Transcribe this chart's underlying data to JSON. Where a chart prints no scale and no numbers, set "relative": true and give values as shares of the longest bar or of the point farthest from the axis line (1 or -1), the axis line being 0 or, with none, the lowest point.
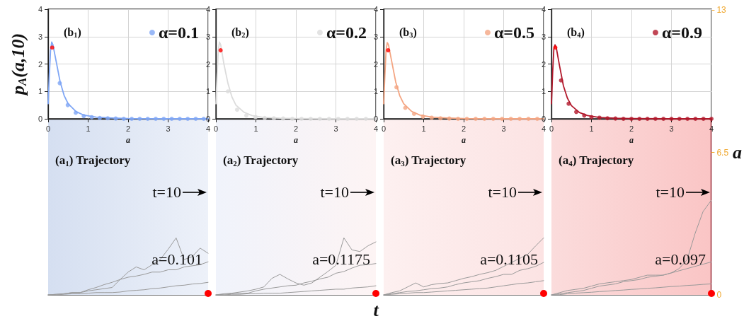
{
  "chart_data": [
    {
      "type": "line",
      "annotations": [
        "(b$_{1}$)"
      ],
      "xlabel": "a",
      "ylabel": "p$_{A}$(a,10)",
      "xlim": [
        0,
        4
      ],
      "xticks": [
        0,
        1,
        2,
        3,
        4
      ],
      "ylim": [
        0,
        4
      ],
      "yticks": [
        0,
        1,
        2,
        3,
        4
      ],
      "grid": true,
      "legend": "top right",
      "marker": "none",
      "series": [
        {
          "color": "#7fa6f5",
          "x": [
            0,
            0.03,
            0.06,
            0.09,
            0.12,
            0.2,
            0.3,
            0.4,
            0.5,
            0.7,
            0.9,
            1.2,
            1.6,
            2,
            3,
            4
          ],
          "values": [
            0.55,
            1.6,
            2.5,
            2.8,
            2.7,
            2.1,
            1.35,
            0.85,
            0.55,
            0.26,
            0.13,
            0.06,
            0.03,
            0.01,
            0,
            0
          ]
        },
        {
          "type": "scatter",
          "name": "α=0.1",
          "color": "#7fa6f5",
          "x": [
            0.29,
            0.49,
            0.69,
            0.89,
            1.09,
            1.29,
            1.49,
            1.69,
            1.89,
            2.09,
            2.29,
            2.49,
            2.69,
            2.89,
            3.09,
            3.29,
            3.49,
            3.69,
            3.89
          ],
          "values": [
            1.3,
            0.5,
            0.22,
            0.1,
            0.06,
            0.03,
            0.02,
            0.01,
            0,
            0,
            0,
            0,
            0,
            0,
            0,
            0,
            0,
            0,
            0
          ]
        },
        {
          "type": "scatter",
          "color": "#ff0000",
          "x": [
            0.101
          ],
          "values": [
            2.6
          ]
        }
      ]
    },
    {
      "type": "line",
      "annotations": [
        "(b$_{2}$)"
      ],
      "xlabel": "a",
      "xlim": [
        0,
        4
      ],
      "xticks": [
        0,
        1,
        2,
        3,
        4
      ],
      "ylim": [
        0,
        4
      ],
      "yticks": [
        0,
        1,
        2,
        3,
        4
      ],
      "grid": true,
      "legend": "top right",
      "marker": "none",
      "series": [
        {
          "color": "#dcdcdc",
          "x": [
            0,
            0.03,
            0.06,
            0.09,
            0.12,
            0.2,
            0.3,
            0.4,
            0.5,
            0.7,
            0.9,
            1.2,
            1.6,
            2,
            3,
            4
          ],
          "values": [
            0.55,
            1.6,
            2.5,
            2.8,
            2.7,
            2.0,
            1.3,
            0.8,
            0.5,
            0.24,
            0.12,
            0.05,
            0.02,
            0.01,
            0,
            0
          ]
        },
        {
          "type": "scatter",
          "name": "α=0.2",
          "color": "#dcdcdc",
          "x": [
            0.3,
            0.53,
            0.76,
            0.99,
            1.22,
            1.45,
            1.68,
            1.91,
            2.14,
            2.37,
            2.6,
            2.83,
            3.06,
            3.29,
            3.52,
            3.75,
            3.98
          ],
          "values": [
            1.0,
            0.33,
            0.12,
            0.06,
            0.03,
            0.02,
            0.01,
            0,
            0,
            0,
            0,
            0,
            0,
            0,
            0,
            0,
            0
          ]
        },
        {
          "type": "scatter",
          "color": "#ff0000",
          "x": [
            0.1175
          ],
          "values": [
            2.5
          ]
        }
      ]
    },
    {
      "type": "line",
      "annotations": [
        "(b$_{3}$)"
      ],
      "xlabel": "a",
      "xlim": [
        0,
        4
      ],
      "xticks": [
        0,
        1,
        2,
        3,
        4
      ],
      "ylim": [
        0,
        4
      ],
      "yticks": [
        0,
        1,
        2,
        3,
        4
      ],
      "grid": true,
      "legend": "top right",
      "marker": "none",
      "series": [
        {
          "color": "#f4a582",
          "x": [
            0,
            0.03,
            0.06,
            0.09,
            0.12,
            0.2,
            0.3,
            0.4,
            0.5,
            0.7,
            0.9,
            1.2,
            1.6,
            2,
            3,
            4
          ],
          "values": [
            0.55,
            1.6,
            2.5,
            2.78,
            2.7,
            2.1,
            1.35,
            0.85,
            0.55,
            0.27,
            0.14,
            0.06,
            0.03,
            0.01,
            0,
            0
          ]
        },
        {
          "type": "scatter",
          "name": "α=0.5",
          "color": "#f4a582",
          "x": [
            0.32,
            0.54,
            0.76,
            0.98,
            1.2,
            1.42,
            1.64,
            1.86,
            2.08,
            2.3,
            2.52,
            2.74,
            2.96,
            3.18,
            3.4,
            3.62,
            3.84
          ],
          "values": [
            1.15,
            0.4,
            0.18,
            0.08,
            0.04,
            0.02,
            0.01,
            0,
            0,
            0,
            0,
            0,
            0,
            0,
            0,
            0,
            0
          ]
        },
        {
          "type": "scatter",
          "color": "#ff0000",
          "x": [
            0.1105
          ],
          "values": [
            2.5
          ]
        }
      ]
    },
    {
      "type": "line",
      "annotations": [
        "(b$_{4}$)"
      ],
      "xlabel": "a",
      "xlim": [
        0,
        4
      ],
      "xticks": [
        0,
        1,
        2,
        3,
        4
      ],
      "ylim": [
        0,
        4
      ],
      "yticks": [
        0,
        1,
        2,
        3,
        4
      ],
      "grid": true,
      "legend": "top right",
      "marker": "none",
      "series": [
        {
          "color": "#b2182b",
          "x": [
            0,
            0.03,
            0.06,
            0.09,
            0.12,
            0.2,
            0.3,
            0.4,
            0.5,
            0.7,
            0.9,
            1.2,
            1.6,
            2,
            3,
            4
          ],
          "values": [
            0.55,
            1.7,
            2.55,
            2.7,
            2.6,
            1.95,
            1.2,
            0.75,
            0.48,
            0.23,
            0.12,
            0.05,
            0.02,
            0.01,
            0,
            0
          ]
        },
        {
          "type": "scatter",
          "name": "α=0.9",
          "color": "#b2182b",
          "x": [
            0.24,
            0.43,
            0.62,
            0.82,
            1.0,
            1.2,
            1.4,
            1.6,
            1.8,
            2.0,
            2.2,
            2.4,
            2.6,
            2.8,
            3.0,
            3.2,
            3.4,
            3.6,
            3.8,
            4.0
          ],
          "values": [
            1.4,
            0.55,
            0.25,
            0.12,
            0.06,
            0.04,
            0.02,
            0.01,
            0,
            0,
            0,
            0,
            0,
            0,
            0,
            0,
            0,
            0,
            0,
            0
          ]
        },
        {
          "type": "scatter",
          "color": "#ff0000",
          "x": [
            0.097
          ],
          "values": [
            2.6
          ]
        }
      ]
    },
    {
      "type": "line",
      "annotations": [
        "(a$_{1}$) Trajectory",
        "t=10",
        "a=0.101"
      ],
      "categories": [
        null,
        null,
        null,
        null,
        null,
        null,
        null,
        null,
        null,
        null,
        null,
        null,
        null,
        null,
        null,
        null,
        null,
        null,
        null,
        null,
        null
      ],
      "relative": true,
      "tick_labels": false,
      "marker": "none",
      "series": [
        {
          "color": "#999999",
          "values": [
            0,
            0.01,
            0.02,
            0.04,
            0.04,
            0.07,
            0.09,
            0.11,
            0.13,
            0.27,
            0.4,
            0.49,
            0.44,
            0.53,
            0.62,
            0.8,
            1,
            0.62,
            0.67,
            0.82,
            0.73
          ]
        },
        {
          "color": "#999999",
          "values": [
            0,
            0.01,
            0.02,
            0.04,
            0.04,
            0.09,
            0.13,
            0.18,
            0.22,
            0.27,
            0.31,
            0.33,
            0.36,
            0.4,
            0.4,
            0.44,
            0.44,
            0.49,
            0.51,
            0.53,
            0.58
          ]
        },
        {
          "color": "#999999",
          "values": [
            0,
            0,
            0.01,
            0.02,
            0.02,
            0.03,
            0.04,
            0.04,
            0.04,
            0.05,
            0.07,
            0.08,
            0.09,
            0.11,
            0.12,
            0.14,
            0.16,
            0.17,
            0.19,
            0.2,
            0.22
          ]
        }
      ]
    },
    {
      "type": "line",
      "annotations": [
        "(a$_{2}$) Trajectory",
        "t=10",
        "a=0.1175"
      ],
      "xlabel": "t",
      "categories": [
        null,
        null,
        null,
        null,
        null,
        null,
        null,
        null,
        null,
        null,
        null,
        null,
        null,
        null,
        null,
        null,
        null,
        null,
        null,
        null,
        null
      ],
      "relative": true,
      "tick_labels": false,
      "marker": "none",
      "series": [
        {
          "color": "#999999",
          "values": [
            0,
            0.02,
            0.03,
            0.05,
            0.07,
            0.1,
            0.14,
            0.29,
            0.36,
            0.28,
            0.21,
            0.17,
            0.21,
            0.31,
            0.41,
            0.52,
            1,
            0.79,
            0.76,
            0.86,
            0.93
          ]
        },
        {
          "color": "#999999",
          "values": [
            0,
            0.01,
            0.02,
            0.03,
            0.03,
            0.07,
            0.1,
            0.12,
            0.14,
            0.16,
            0.17,
            0.21,
            0.24,
            0.28,
            0.31,
            0.38,
            0.41,
            0.47,
            0.52,
            0.53,
            0.55
          ]
        },
        {
          "color": "#999999",
          "values": [
            0,
            0,
            0.01,
            0.01,
            0.02,
            0.02,
            0.03,
            0.03,
            0.03,
            0.04,
            0.05,
            0.06,
            0.07,
            0.08,
            0.09,
            0.1,
            0.1,
            0.12,
            0.13,
            0.14,
            0.16
          ]
        }
      ]
    },
    {
      "type": "line",
      "annotations": [
        "(a$_{3}$) Trajectory",
        "t=10",
        "a=0.1105"
      ],
      "categories": [
        null,
        null,
        null,
        null,
        null,
        null,
        null,
        null,
        null,
        null,
        null,
        null,
        null,
        null,
        null,
        null,
        null,
        null,
        null,
        null,
        null
      ],
      "relative": true,
      "tick_labels": false,
      "marker": "none",
      "series": [
        {
          "color": "#999999",
          "values": [
            0,
            0.04,
            0.07,
            0.14,
            0.21,
            0.14,
            0.18,
            0.2,
            0.21,
            0.25,
            0.29,
            0.32,
            0.36,
            0.39,
            0.43,
            0.5,
            0.57,
            0.64,
            0.71,
            0.86,
            1
          ]
        },
        {
          "color": "#999999",
          "values": [
            0,
            0.02,
            0.04,
            0.06,
            0.07,
            0.09,
            0.11,
            0.12,
            0.14,
            0.18,
            0.21,
            0.23,
            0.25,
            0.29,
            0.32,
            0.36,
            0.36,
            0.43,
            0.46,
            0.5,
            0.57
          ]
        },
        {
          "color": "#999999",
          "values": [
            0,
            0.01,
            0.02,
            0.03,
            0.04,
            0.04,
            0.05,
            0.06,
            0.07,
            0.08,
            0.09,
            0.1,
            0.11,
            0.12,
            0.14,
            0.16,
            0.18,
            0.2,
            0.21,
            0.23,
            0.25
          ]
        }
      ]
    },
    {
      "type": "line",
      "annotations": [
        "(a$_{4}$) Trajectory",
        "t=10",
        "a=0.097"
      ],
      "ylabel": "a",
      "categories": [
        null,
        null,
        null,
        null,
        null,
        null,
        null,
        null,
        null,
        null,
        null,
        null,
        null,
        null,
        null,
        null,
        null,
        null,
        null,
        null,
        null
      ],
      "ylim": [
        0,
        13
      ],
      "yticks": [
        0,
        6.5,
        13
      ],
      "tick_labels": "y",
      "marker": "none",
      "series": [
        {
          "color": "#999999",
          "values": [
            0,
            0.05,
            0.1,
            0.15,
            0.2,
            0.3,
            0.4,
            0.45,
            0.5,
            0.6,
            0.65,
            0.7,
            0.8,
            0.85,
            0.9,
            1.0,
            1.2,
            1.6,
            2.8,
            3.8,
            4.3
          ]
        },
        {
          "color": "#999999",
          "values": [
            0,
            0.1,
            0.2,
            0.25,
            0.3,
            0.4,
            0.5,
            0.55,
            0.6,
            0.65,
            0.7,
            0.8,
            0.9,
            0.9,
            0.9,
            1.0,
            1.1,
            1.2,
            1.3,
            1.4,
            1.5
          ]
        },
        {
          "color": "#999999",
          "values": [
            0,
            0.01,
            0.05,
            0.08,
            0.1,
            0.12,
            0.15,
            0.17,
            0.2,
            0.22,
            0.25,
            0.27,
            0.3,
            0.32,
            0.35,
            0.38,
            0.4,
            0.43,
            0.45,
            0.48,
            0.5
          ]
        }
      ]
    }
  ]
}
